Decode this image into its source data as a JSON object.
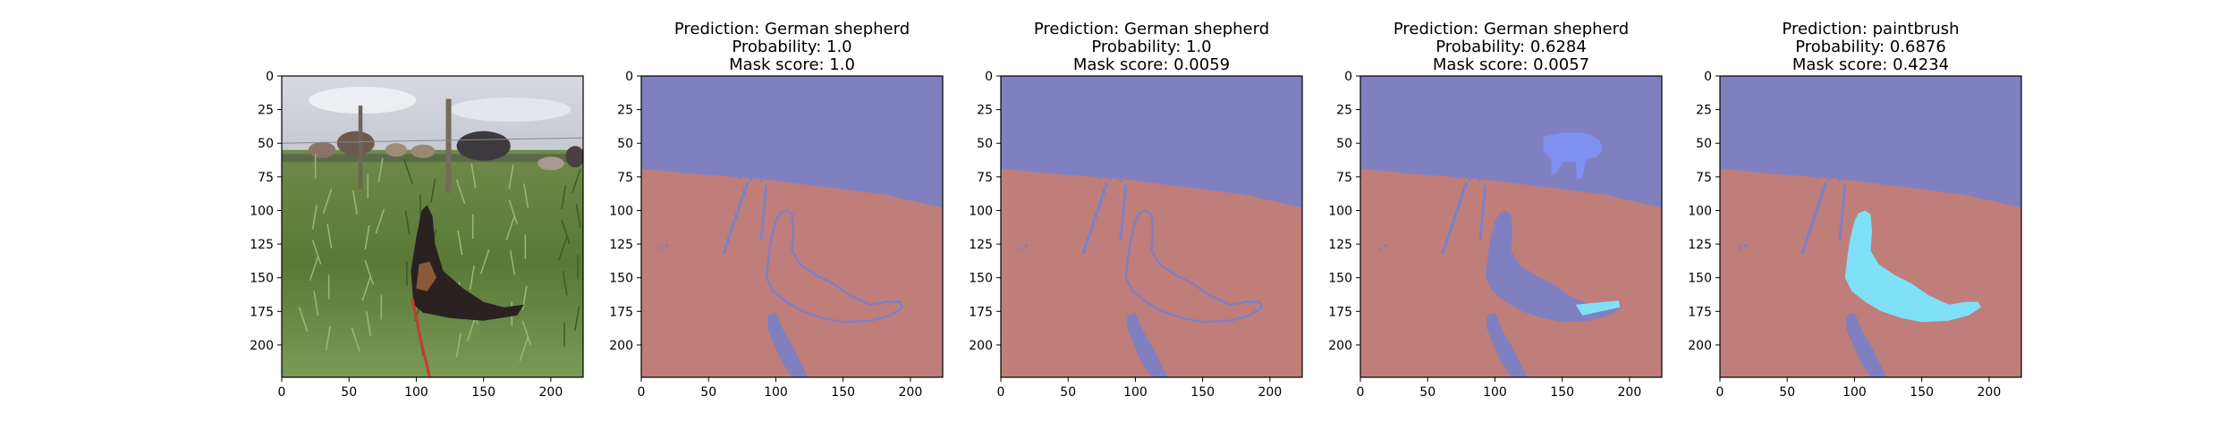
{
  "chart_data": [
    {
      "type": "image",
      "title_lines": [],
      "xlim": [
        0,
        224
      ],
      "ylim": [
        224,
        0
      ],
      "xticks": [
        0,
        50,
        100,
        150,
        200
      ],
      "yticks": [
        0,
        25,
        50,
        75,
        100,
        125,
        150,
        175,
        200
      ],
      "content": "photo"
    },
    {
      "type": "image",
      "title_lines": [
        "Prediction: German shepherd",
        "Probability: 1.0",
        "Mask score: 1.0"
      ],
      "xlim": [
        0,
        224
      ],
      "ylim": [
        224,
        0
      ],
      "xticks": [
        0,
        50,
        100,
        150,
        200
      ],
      "yticks": [
        0,
        25,
        50,
        75,
        100,
        125,
        150,
        175,
        200
      ],
      "content": "segmentation",
      "highlight": "none"
    },
    {
      "type": "image",
      "title_lines": [
        "Prediction: German shepherd",
        "Probability: 1.0",
        "Mask score: 0.0059"
      ],
      "xlim": [
        0,
        224
      ],
      "ylim": [
        224,
        0
      ],
      "xticks": [
        0,
        50,
        100,
        150,
        200
      ],
      "yticks": [
        0,
        25,
        50,
        75,
        100,
        125,
        150,
        175,
        200
      ],
      "content": "segmentation",
      "highlight": "none"
    },
    {
      "type": "image",
      "title_lines": [
        "Prediction: German shepherd",
        "Probability: 0.6284",
        "Mask score: 0.0057"
      ],
      "xlim": [
        0,
        224
      ],
      "ylim": [
        224,
        0
      ],
      "xticks": [
        0,
        50,
        100,
        150,
        200
      ],
      "yticks": [
        0,
        25,
        50,
        75,
        100,
        125,
        150,
        175,
        200
      ],
      "content": "segmentation",
      "highlight": "cow"
    },
    {
      "type": "image",
      "title_lines": [
        "Prediction: paintbrush",
        "Probability: 0.6876",
        "Mask score: 0.4234"
      ],
      "xlim": [
        0,
        224
      ],
      "ylim": [
        224,
        0
      ],
      "xticks": [
        0,
        50,
        100,
        150,
        200
      ],
      "yticks": [
        0,
        25,
        50,
        75,
        100,
        125,
        150,
        175,
        200
      ],
      "content": "segmentation",
      "highlight": "dog"
    }
  ],
  "colors": {
    "sky_segment": "#8080c0",
    "ground_segment": "#c07e7a",
    "highlight_segment": "#80e0f8",
    "cow_highlight": "#8090f0",
    "axis": "#000000"
  }
}
